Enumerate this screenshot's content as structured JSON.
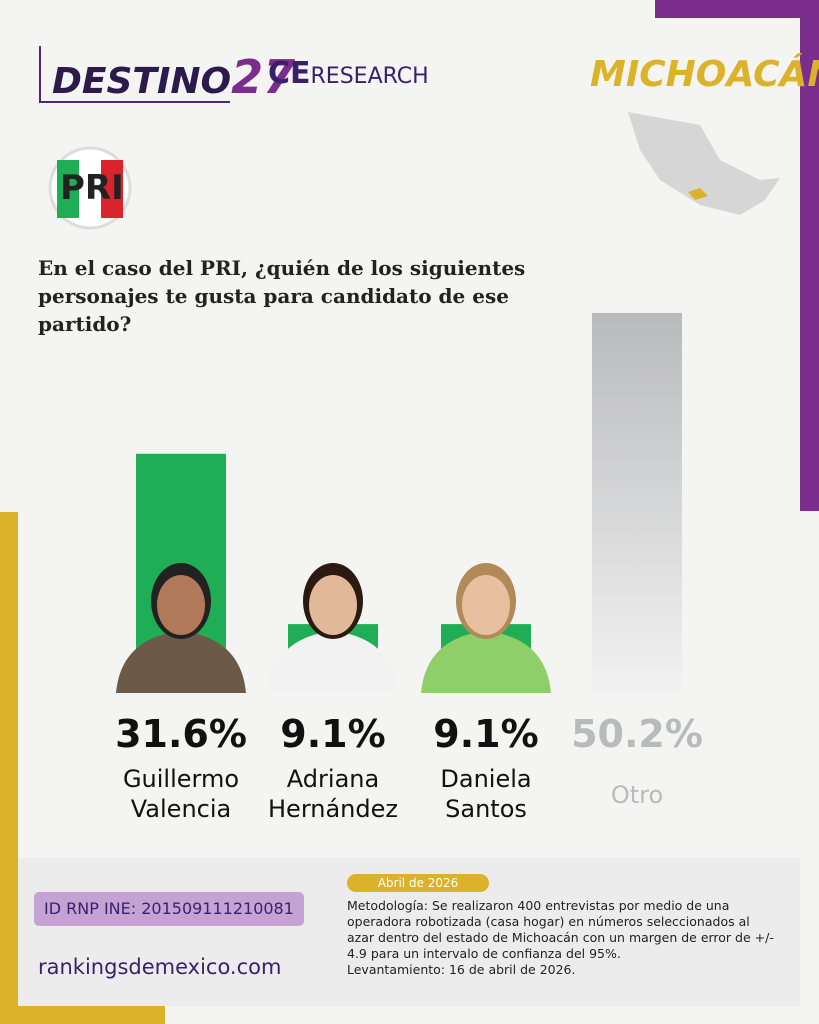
{
  "header": {
    "brand": "DESTINO",
    "brand_number": "27",
    "partner_bold": "CE",
    "partner": "RESEARCH",
    "state": "MICHOACÁN",
    "party_logo": "PRI"
  },
  "chart_data": {
    "type": "bar",
    "title": "En el caso del PRI, ¿quién de los siguientes personajes te gusta para candidato de ese partido?",
    "categories": [
      "Guillermo Valencia",
      "Adriana Hernández",
      "Daniela Santos",
      "Otro"
    ],
    "values": [
      31.6,
      9.1,
      9.1,
      50.2
    ],
    "value_labels": [
      "31.6%",
      "9.1%",
      "9.1%",
      "50.2%"
    ],
    "colors": [
      "#1fae55",
      "#1fae55",
      "#1fae55",
      "#b9babc"
    ]
  },
  "footer": {
    "date": "Abril de 2026",
    "id": "ID RNP INE: 201509111210081",
    "website": "rankingsdemexico.com",
    "methodology": "Metodología: Se realizaron 400 entrevistas por medio de una operadora robotizada (casa hogar) en números seleccionados al azar dentro del estado de Michoacán con un margen de error de +/- 4.9 para un intervalo de confianza del 95%.",
    "fieldwork": "Levantamiento: 16 de abril de 2026."
  }
}
